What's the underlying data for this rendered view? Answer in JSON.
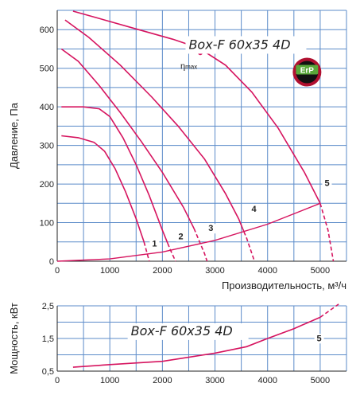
{
  "colors": {
    "grid": "#5b8bc9",
    "curve": "#d6145f",
    "erp_ring": "#b01030",
    "erp_fill": "#111111",
    "erp_green": "#5aa83a"
  },
  "chart_data": [
    {
      "type": "line",
      "title": "Box-F 60x35 4D",
      "xlabel": "Производительность, м³/ч",
      "ylabel": "Давление, Па",
      "xlim": [
        0,
        5500
      ],
      "ylim": [
        0,
        650
      ],
      "x_ticks": [
        "0",
        "1000",
        "2000",
        "3000",
        "4000",
        "5000"
      ],
      "y_ticks": [
        "0",
        "100",
        "200",
        "300",
        "400",
        "500",
        "600"
      ],
      "grid": true,
      "eta_label": "η",
      "eta_sub": "max",
      "eta_point": {
        "x": 2720,
        "y": 540
      },
      "badge": "ErP",
      "series": [
        {
          "name": "1",
          "points": [
            [
              80,
              325
            ],
            [
              400,
              320
            ],
            [
              700,
              308
            ],
            [
              900,
              285
            ],
            [
              1100,
              240
            ],
            [
              1300,
              180
            ],
            [
              1500,
              110
            ],
            [
              1650,
              50
            ],
            [
              1750,
              0
            ]
          ],
          "dashed_from": 1650
        },
        {
          "name": "2",
          "points": [
            [
              80,
              400
            ],
            [
              500,
              400
            ],
            [
              800,
              395
            ],
            [
              1000,
              375
            ],
            [
              1250,
              320
            ],
            [
              1500,
              250
            ],
            [
              1750,
              170
            ],
            [
              2000,
              80
            ],
            [
              2150,
              30
            ],
            [
              2250,
              0
            ]
          ],
          "dashed_from": 2100
        },
        {
          "name": "3",
          "points": [
            [
              80,
              550
            ],
            [
              400,
              518
            ],
            [
              800,
              455
            ],
            [
              1200,
              385
            ],
            [
              1600,
              310
            ],
            [
              2000,
              230
            ],
            [
              2400,
              140
            ],
            [
              2600,
              85
            ],
            [
              2800,
              20
            ],
            [
              2850,
              0
            ]
          ],
          "dashed_from": 2600
        },
        {
          "name": "4",
          "points": [
            [
              150,
              625
            ],
            [
              600,
              580
            ],
            [
              1200,
              508
            ],
            [
              1800,
              425
            ],
            [
              2300,
              350
            ],
            [
              2800,
              265
            ],
            [
              3200,
              175
            ],
            [
              3450,
              110
            ],
            [
              3600,
              60
            ],
            [
              3750,
              0
            ]
          ],
          "dashed_from": 3550
        },
        {
          "name": "5",
          "points": [
            [
              300,
              648
            ],
            [
              900,
              625
            ],
            [
              1600,
              598
            ],
            [
              2200,
              575
            ],
            [
              2700,
              552
            ],
            [
              3200,
              508
            ],
            [
              3700,
              438
            ],
            [
              4200,
              345
            ],
            [
              4700,
              230
            ],
            [
              5000,
              150
            ],
            [
              5150,
              80
            ],
            [
              5250,
              0
            ]
          ],
          "dashed_from": 5000
        }
      ],
      "system_curve": {
        "points": [
          [
            0,
            0
          ],
          [
            1000,
            6
          ],
          [
            2000,
            24
          ],
          [
            3000,
            54
          ],
          [
            4000,
            96
          ],
          [
            5000,
            150
          ]
        ]
      },
      "label_positions": [
        {
          "name": "1",
          "x": 1850,
          "y": 38
        },
        {
          "name": "2",
          "x": 2350,
          "y": 57
        },
        {
          "name": "3",
          "x": 2920,
          "y": 78
        },
        {
          "name": "4",
          "x": 3740,
          "y": 128
        },
        {
          "name": "5",
          "x": 5130,
          "y": 195
        }
      ]
    },
    {
      "type": "line",
      "title": "Box-F 60x35 4D",
      "xlabel": "",
      "ylabel": "Мощность, кВт",
      "xlim": [
        0,
        5500
      ],
      "ylim": [
        0.5,
        2.5
      ],
      "x_ticks": [
        "0",
        "1000",
        "2000",
        "3000",
        "4000",
        "5000"
      ],
      "y_ticks": [
        "0,5",
        "1,5",
        "2,5"
      ],
      "grid": true,
      "series": [
        {
          "name": "5",
          "points": [
            [
              300,
              0.62
            ],
            [
              1000,
              0.7
            ],
            [
              2000,
              0.8
            ],
            [
              3000,
              1.05
            ],
            [
              3600,
              1.25
            ],
            [
              4000,
              1.5
            ],
            [
              4500,
              1.8
            ],
            [
              5000,
              2.15
            ],
            [
              5350,
              2.55
            ]
          ],
          "dashed_from": 5000
        }
      ],
      "label_position": {
        "name": "5",
        "x": 4980,
        "y": 1.42
      }
    }
  ]
}
